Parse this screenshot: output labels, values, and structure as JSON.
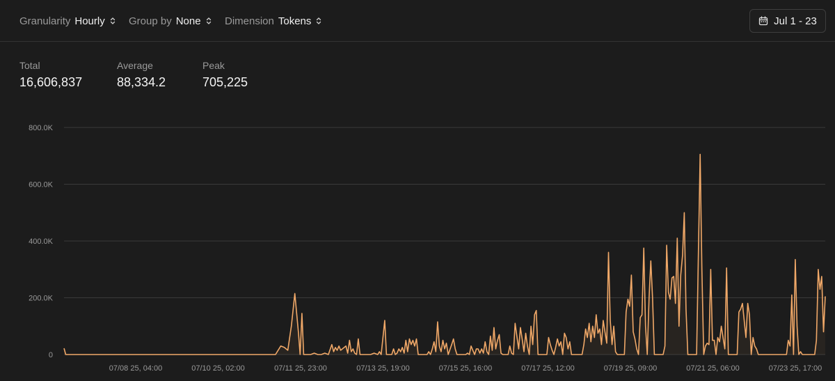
{
  "filters": [
    {
      "label": "Granularity",
      "value": "Hourly"
    },
    {
      "label": "Group by",
      "value": "None"
    },
    {
      "label": "Dimension",
      "value": "Tokens"
    }
  ],
  "date_range": {
    "label": "Jul 1 - 23",
    "icon": "calendar-icon"
  },
  "stats": [
    {
      "label": "Total",
      "value": "16,606,837"
    },
    {
      "label": "Average",
      "value": "88,334.2"
    },
    {
      "label": "Peak",
      "value": "705,225"
    }
  ],
  "colors": {
    "background": "#1c1c1c",
    "line": "#f0a868",
    "grid": "#3a3a3a"
  },
  "chart_data": {
    "type": "line",
    "ylim": [
      0,
      800000
    ],
    "y_ticks": [
      0,
      200000,
      400000,
      600000,
      800000
    ],
    "y_tick_labels": [
      "0",
      "200.0K",
      "400.0K",
      "600.0K",
      "800.0K"
    ],
    "x_tick_labels": [
      "07/08 25, 04:00",
      "07/10 25, 02:00",
      "07/11 25, 23:00",
      "07/13 25, 19:00",
      "07/15 25, 16:00",
      "07/17 25, 12:00",
      "07/19 25, 09:00",
      "07/21 25, 06:00",
      "07/23 25, 17:00"
    ],
    "grid": true,
    "series": [
      {
        "values": [
          [
            0,
            22000
          ],
          [
            0.5,
            0
          ],
          [
            60,
            0
          ],
          [
            61.5,
            30000
          ],
          [
            62.5,
            25000
          ],
          [
            63.5,
            15000
          ],
          [
            64.5,
            100000
          ],
          [
            65.5,
            215000
          ],
          [
            66.5,
            80000
          ],
          [
            67,
            0
          ],
          [
            67.5,
            145000
          ],
          [
            68,
            0
          ],
          [
            70,
            0
          ],
          [
            71,
            5000
          ],
          [
            72,
            0
          ],
          [
            73,
            0
          ],
          [
            74,
            5000
          ],
          [
            75,
            0
          ],
          [
            76,
            35000
          ],
          [
            76.5,
            10000
          ],
          [
            77,
            25000
          ],
          [
            77.5,
            15000
          ],
          [
            78,
            30000
          ],
          [
            78.5,
            15000
          ],
          [
            79,
            20000
          ],
          [
            80,
            30000
          ],
          [
            80.5,
            5000
          ],
          [
            81,
            50000
          ],
          [
            81.5,
            10000
          ],
          [
            82,
            20000
          ],
          [
            82.5,
            5000
          ],
          [
            83,
            0
          ],
          [
            83.5,
            55000
          ],
          [
            84,
            0
          ],
          [
            87,
            0
          ],
          [
            88,
            5000
          ],
          [
            89,
            0
          ],
          [
            89.5,
            10000
          ],
          [
            90,
            0
          ],
          [
            91,
            120000
          ],
          [
            91.5,
            0
          ],
          [
            93,
            0
          ],
          [
            93.5,
            20000
          ],
          [
            94,
            0
          ],
          [
            94.5,
            5000
          ],
          [
            95,
            20000
          ],
          [
            95.5,
            10000
          ],
          [
            96,
            25000
          ],
          [
            96.5,
            5000
          ],
          [
            97,
            50000
          ],
          [
            97.5,
            10000
          ],
          [
            98,
            55000
          ],
          [
            98.5,
            35000
          ],
          [
            99,
            50000
          ],
          [
            99.5,
            30000
          ],
          [
            100,
            55000
          ],
          [
            100.5,
            0
          ],
          [
            103,
            0
          ],
          [
            103.5,
            10000
          ],
          [
            104,
            0
          ],
          [
            104.5,
            20000
          ],
          [
            105,
            45000
          ],
          [
            105.5,
            10000
          ],
          [
            106,
            115000
          ],
          [
            106.5,
            30000
          ],
          [
            107,
            10000
          ],
          [
            107.5,
            50000
          ],
          [
            108,
            20000
          ],
          [
            108.5,
            40000
          ],
          [
            109,
            0
          ],
          [
            110,
            35000
          ],
          [
            110.5,
            55000
          ],
          [
            111,
            20000
          ],
          [
            111.5,
            0
          ],
          [
            114,
            0
          ],
          [
            114.5,
            5000
          ],
          [
            115,
            0
          ],
          [
            115.5,
            30000
          ],
          [
            116,
            15000
          ],
          [
            116.5,
            0
          ],
          [
            117,
            20000
          ],
          [
            117.5,
            20000
          ],
          [
            118,
            5000
          ],
          [
            118.5,
            20000
          ],
          [
            119,
            5000
          ],
          [
            119.5,
            45000
          ],
          [
            120,
            10000
          ],
          [
            120.5,
            0
          ],
          [
            121,
            65000
          ],
          [
            121.5,
            15000
          ],
          [
            122,
            95000
          ],
          [
            122.5,
            20000
          ],
          [
            123,
            50000
          ],
          [
            123.5,
            70000
          ],
          [
            124,
            5000
          ],
          [
            124.5,
            0
          ],
          [
            126,
            0
          ],
          [
            126.5,
            30000
          ],
          [
            127,
            5000
          ],
          [
            127.5,
            0
          ],
          [
            128,
            110000
          ],
          [
            128.5,
            65000
          ],
          [
            129,
            20000
          ],
          [
            129.5,
            95000
          ],
          [
            130,
            55000
          ],
          [
            130.5,
            10000
          ],
          [
            131,
            75000
          ],
          [
            131.5,
            30000
          ],
          [
            132,
            0
          ],
          [
            132.5,
            100000
          ],
          [
            133,
            35000
          ],
          [
            133.5,
            140000
          ],
          [
            134,
            155000
          ],
          [
            134.5,
            0
          ],
          [
            137,
            0
          ],
          [
            137.5,
            60000
          ],
          [
            138,
            35000
          ],
          [
            138.5,
            15000
          ],
          [
            139,
            0
          ],
          [
            139.5,
            25000
          ],
          [
            140,
            55000
          ],
          [
            140.5,
            30000
          ],
          [
            141,
            45000
          ],
          [
            141.5,
            0
          ],
          [
            142,
            75000
          ],
          [
            142.5,
            60000
          ],
          [
            143,
            20000
          ],
          [
            143.5,
            45000
          ],
          [
            144,
            0
          ],
          [
            147,
            0
          ],
          [
            147.5,
            35000
          ],
          [
            148,
            90000
          ],
          [
            148.5,
            60000
          ],
          [
            149,
            110000
          ],
          [
            149.5,
            45000
          ],
          [
            150,
            100000
          ],
          [
            150.5,
            60000
          ],
          [
            151,
            140000
          ],
          [
            151.5,
            75000
          ],
          [
            152,
            90000
          ],
          [
            152.5,
            35000
          ],
          [
            153,
            120000
          ],
          [
            153.5,
            80000
          ],
          [
            154,
            40000
          ],
          [
            154.5,
            360000
          ],
          [
            155,
            120000
          ],
          [
            155.5,
            35000
          ],
          [
            156,
            100000
          ],
          [
            156.5,
            10000
          ],
          [
            157,
            0
          ],
          [
            159,
            0
          ],
          [
            159.5,
            150000
          ],
          [
            160,
            195000
          ],
          [
            160.5,
            170000
          ],
          [
            161,
            280000
          ],
          [
            161.5,
            80000
          ],
          [
            162,
            55000
          ],
          [
            162.5,
            20000
          ],
          [
            163,
            0
          ],
          [
            163.5,
            130000
          ],
          [
            164,
            140000
          ],
          [
            164.5,
            375000
          ],
          [
            165,
            100000
          ],
          [
            165.5,
            0
          ],
          [
            166,
            200000
          ],
          [
            166.5,
            330000
          ],
          [
            167,
            200000
          ],
          [
            167.5,
            0
          ],
          [
            170,
            0
          ],
          [
            170.5,
            30000
          ],
          [
            171,
            385000
          ],
          [
            171.5,
            220000
          ],
          [
            172,
            195000
          ],
          [
            172.5,
            270000
          ],
          [
            173,
            275000
          ],
          [
            173.5,
            180000
          ],
          [
            174,
            410000
          ],
          [
            174.5,
            100000
          ],
          [
            175,
            280000
          ],
          [
            175.5,
            350000
          ],
          [
            176,
            500000
          ],
          [
            176.5,
            160000
          ],
          [
            177,
            0
          ],
          [
            179.5,
            0
          ],
          [
            180.5,
            705225
          ],
          [
            181,
            300000
          ],
          [
            181.5,
            0
          ],
          [
            182,
            30000
          ],
          [
            182.5,
            40000
          ],
          [
            183,
            35000
          ],
          [
            183.5,
            300000
          ],
          [
            184,
            50000
          ],
          [
            184.5,
            50000
          ],
          [
            185,
            0
          ],
          [
            185.5,
            60000
          ],
          [
            186,
            45000
          ],
          [
            186.5,
            100000
          ],
          [
            187,
            60000
          ],
          [
            187.5,
            20000
          ],
          [
            188,
            305000
          ],
          [
            188.5,
            0
          ],
          [
            191,
            0
          ],
          [
            191.5,
            150000
          ],
          [
            192,
            160000
          ],
          [
            192.5,
            180000
          ],
          [
            193,
            120000
          ],
          [
            193.5,
            60000
          ],
          [
            194,
            180000
          ],
          [
            194.5,
            140000
          ],
          [
            195,
            0
          ],
          [
            195.5,
            60000
          ],
          [
            196,
            30000
          ],
          [
            196.5,
            20000
          ],
          [
            197,
            0
          ],
          [
            205,
            0
          ],
          [
            205.5,
            50000
          ],
          [
            206,
            30000
          ],
          [
            206.5,
            210000
          ],
          [
            207,
            0
          ],
          [
            207.5,
            335000
          ],
          [
            208,
            100000
          ],
          [
            208.5,
            0
          ],
          [
            209,
            10000
          ],
          [
            209.5,
            0
          ],
          [
            213,
            0
          ],
          [
            213.5,
            50000
          ],
          [
            214,
            300000
          ],
          [
            214.5,
            230000
          ],
          [
            215,
            275000
          ],
          [
            215.5,
            80000
          ],
          [
            216,
            205000
          ]
        ]
      }
    ]
  }
}
